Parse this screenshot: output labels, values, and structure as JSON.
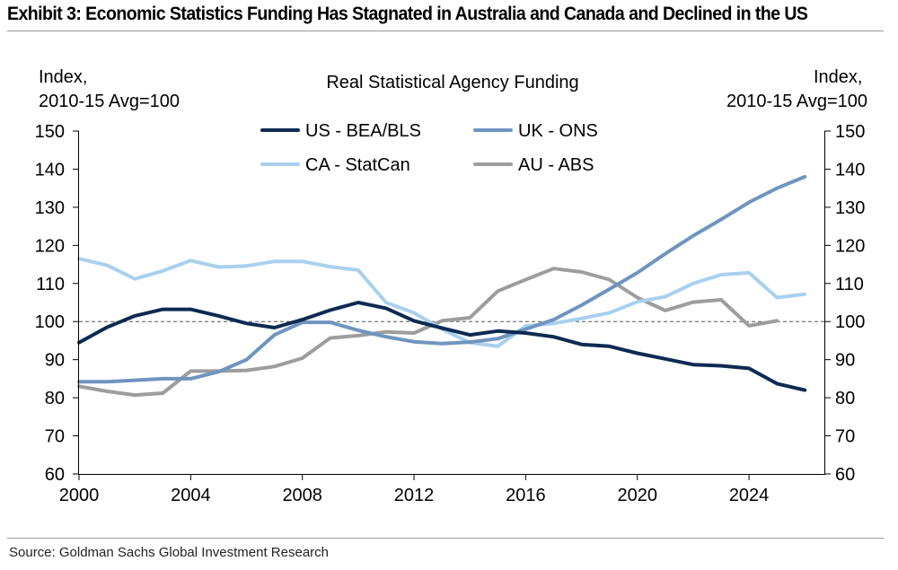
{
  "title": "Exhibit 3: Economic Statistics Funding Has Stagnated in Australia and Canada and Declined in the US",
  "source": "Source: Goldman Sachs Global Investment Research",
  "chart_data": {
    "type": "line",
    "title": "Real Statistical Agency Funding",
    "ylabel_left": "Index,\n2010-15 Avg=100",
    "ylabel_right": "Index,\n2010-15 Avg=100",
    "xlabel": "",
    "xlim": [
      2000,
      2026.7
    ],
    "ylim": [
      60,
      150
    ],
    "x_ticks": [
      "2000",
      "2004",
      "2008",
      "2012",
      "2016",
      "2020",
      "2024"
    ],
    "y_ticks": [
      "60",
      "70",
      "80",
      "90",
      "100",
      "110",
      "120",
      "130",
      "140",
      "150"
    ],
    "reference_line": 100,
    "legend_position": "top-center",
    "series": [
      {
        "name": "US - BEA/BLS",
        "color": "#0d2a52",
        "x": [
          2000,
          2001,
          2002,
          2003,
          2004,
          2005,
          2006,
          2007,
          2008,
          2009,
          2010,
          2011,
          2012,
          2013,
          2014,
          2015,
          2016,
          2017,
          2018,
          2019,
          2020,
          2021,
          2022,
          2023,
          2024,
          2025,
          2026
        ],
        "values": [
          94.5,
          98.5,
          101.5,
          103.2,
          103.2,
          101.5,
          99.5,
          98.4,
          100.5,
          103,
          105,
          103.5,
          100.2,
          98.3,
          96.5,
          97.5,
          97,
          96,
          94,
          93.5,
          91.7,
          90.2,
          88.7,
          88.4,
          87.7,
          83.7,
          82
        ]
      },
      {
        "name": "UK - ONS",
        "color": "#6f94bf",
        "x": [
          2000,
          2001,
          2002,
          2003,
          2004,
          2005,
          2006,
          2007,
          2008,
          2009,
          2010,
          2011,
          2012,
          2013,
          2014,
          2015,
          2016,
          2017,
          2018,
          2019,
          2020,
          2021,
          2022,
          2023,
          2024,
          2025,
          2026
        ],
        "values": [
          84.2,
          84.2,
          84.6,
          85,
          85,
          86.8,
          90,
          96.5,
          99.8,
          99.8,
          97.7,
          96,
          94.7,
          94.2,
          94.6,
          95.5,
          98,
          100.5,
          104.3,
          108.5,
          112.8,
          117.8,
          122.5,
          126.8,
          131.3,
          135,
          138
        ]
      },
      {
        "name": "CA - StatCan",
        "color": "#a9d0ee",
        "x": [
          2000,
          2001,
          2002,
          2003,
          2004,
          2005,
          2006,
          2007,
          2008,
          2009,
          2010,
          2011,
          2012,
          2013,
          2014,
          2015,
          2016,
          2017,
          2018,
          2019,
          2020,
          2021,
          2022,
          2023,
          2024,
          2025,
          2026
        ],
        "values": [
          116.5,
          114.8,
          111.2,
          113.3,
          116,
          114.3,
          114.6,
          115.8,
          115.8,
          114.4,
          113.5,
          105,
          102.3,
          98,
          94.5,
          93.5,
          98.8,
          99.5,
          100.8,
          102.3,
          105.2,
          106.5,
          110,
          112.3,
          112.8,
          106.3,
          107.2
        ]
      },
      {
        "name": "AU - ABS",
        "color": "#9d9d9d",
        "x": [
          2000,
          2001,
          2002,
          2003,
          2004,
          2005,
          2006,
          2007,
          2008,
          2009,
          2010,
          2011,
          2012,
          2013,
          2014,
          2015,
          2016,
          2017,
          2018,
          2019,
          2020,
          2021,
          2022,
          2023,
          2024,
          2025
        ],
        "values": [
          83,
          81.7,
          80.7,
          81.2,
          87,
          87,
          87.2,
          88.2,
          90.4,
          95.7,
          96.3,
          97.3,
          97,
          100.2,
          101,
          108,
          111,
          113.9,
          113,
          111,
          106.3,
          102.9,
          105.1,
          105.7,
          98.9,
          100.2
        ]
      }
    ]
  }
}
